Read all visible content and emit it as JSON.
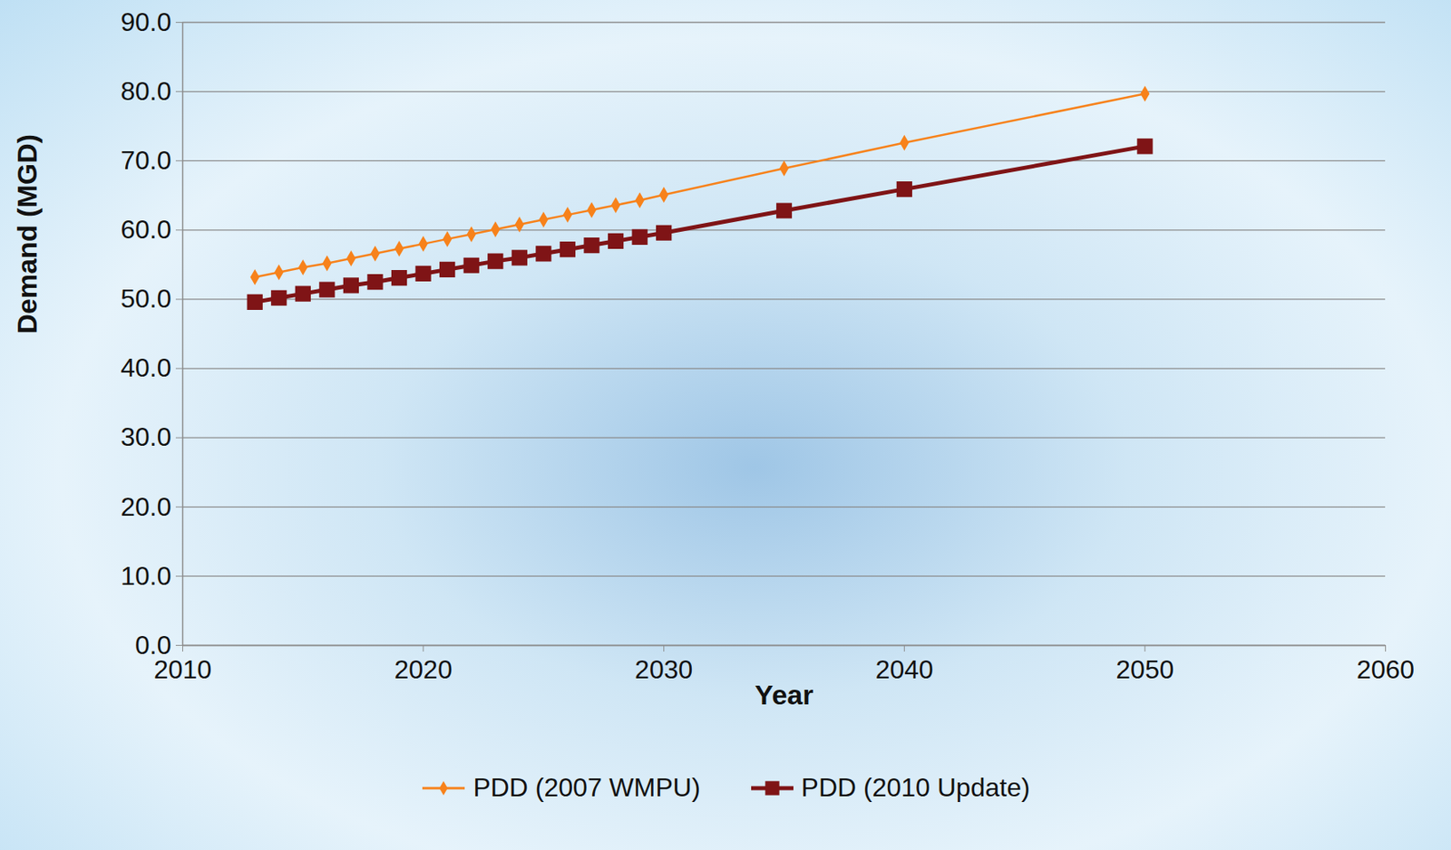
{
  "chart_data": {
    "type": "line",
    "x_label": "Year",
    "y_label": "Demand (MGD)",
    "xlim": [
      2010,
      2060
    ],
    "xticks": [
      2010,
      2020,
      2030,
      2040,
      2050,
      2060
    ],
    "ylim": [
      0,
      90
    ],
    "yticks": [
      {
        "value": 0,
        "label": "0.0"
      },
      {
        "value": 10,
        "label": "10.0"
      },
      {
        "value": 20,
        "label": "20.0"
      },
      {
        "value": 30,
        "label": "30.0"
      },
      {
        "value": 40,
        "label": "40.0"
      },
      {
        "value": 50,
        "label": "50.0"
      },
      {
        "value": 60,
        "label": "60.0"
      },
      {
        "value": 70,
        "label": "70.0"
      },
      {
        "value": 80,
        "label": "80.0"
      },
      {
        "value": 90,
        "label": "90.0"
      }
    ],
    "grid": "y",
    "legend": "bottom",
    "x": [
      2013,
      2014,
      2015,
      2016,
      2017,
      2018,
      2019,
      2020,
      2021,
      2022,
      2023,
      2024,
      2025,
      2026,
      2027,
      2028,
      2029,
      2030,
      2035,
      2040,
      2050
    ],
    "series": [
      {
        "name": "PDD (2007 WMPU)",
        "color": "#f7821b",
        "marker": "diamond",
        "line_style": "solid",
        "values": [
          53.2,
          53.9,
          54.6,
          55.2,
          55.9,
          56.6,
          57.3,
          58.0,
          58.7,
          59.4,
          60.1,
          60.8,
          61.5,
          62.2,
          62.9,
          63.6,
          64.3,
          65.1,
          68.9,
          72.6,
          79.7
        ]
      },
      {
        "name": "PDD (2010 Update)",
        "color": "#7f1416",
        "marker": "square",
        "line_style": "solid",
        "values": [
          49.6,
          50.2,
          50.8,
          51.4,
          52.0,
          52.5,
          53.1,
          53.7,
          54.3,
          54.9,
          55.5,
          56.0,
          56.6,
          57.2,
          57.8,
          58.4,
          59.0,
          59.6,
          62.8,
          65.9,
          72.1
        ]
      }
    ]
  }
}
